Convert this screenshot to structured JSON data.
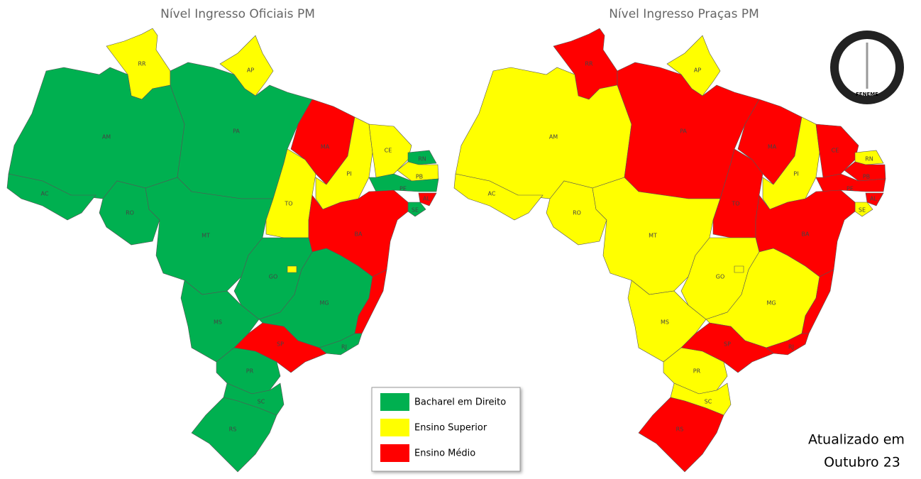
{
  "maps": [
    {
      "title": "Nível Ingresso Oficiais PM",
      "states": [
        {
          "label": "RR",
          "level": 1
        },
        {
          "label": "AP",
          "level": 1
        },
        {
          "label": "AM",
          "level": 0
        },
        {
          "label": "PA",
          "level": 0
        },
        {
          "label": "AC",
          "level": 0
        },
        {
          "label": "RO",
          "level": 0
        },
        {
          "label": "MT",
          "level": 0
        },
        {
          "label": "MA",
          "level": 2
        },
        {
          "label": "TO",
          "level": 1
        },
        {
          "label": "PI",
          "level": 1
        },
        {
          "label": "CE",
          "level": 1
        },
        {
          "label": "RN",
          "level": 0
        },
        {
          "label": "PB",
          "level": 1
        },
        {
          "label": "PE",
          "level": 0
        },
        {
          "label": "AL",
          "level": 2
        },
        {
          "label": "SE",
          "level": 0
        },
        {
          "label": "BA",
          "level": 2
        },
        {
          "label": "GO",
          "level": 0
        },
        {
          "level": 1
        },
        {
          "label": "MG",
          "level": 0
        },
        {
          "level": 2
        },
        {
          "label": "MS",
          "level": 0
        },
        {
          "label": "RJ",
          "level": 0
        },
        {
          "label": "SP",
          "level": 2
        },
        {
          "label": "PR",
          "level": 0
        },
        {
          "label": "SC",
          "level": 0
        },
        {
          "label": "RS",
          "level": 0
        }
      ]
    },
    {
      "title": "Nível Ingresso Praças PM",
      "states": [
        {
          "label": "RR",
          "level": 2
        },
        {
          "label": "AP",
          "level": 1
        },
        {
          "label": "AM",
          "level": 1
        },
        {
          "label": "PA",
          "level": 2
        },
        {
          "label": "AC",
          "level": 1
        },
        {
          "label": "RO",
          "level": 1
        },
        {
          "label": "MT",
          "level": 1
        },
        {
          "label": "MA",
          "level": 2
        },
        {
          "label": "TO",
          "level": 2
        },
        {
          "label": "PI",
          "level": 1
        },
        {
          "label": "CE",
          "level": 2
        },
        {
          "label": "RN",
          "level": 1
        },
        {
          "label": "PB",
          "level": 2
        },
        {
          "label": "PE",
          "level": 2
        },
        {
          "label": "AL",
          "level": 2
        },
        {
          "label": "SE",
          "level": 1
        },
        {
          "label": "BA",
          "level": 2
        },
        {
          "label": "GO",
          "level": 1
        },
        {
          "level": 1
        },
        {
          "label": "MG",
          "level": 1
        },
        {
          "level": 2
        },
        {
          "label": "MS",
          "level": 1
        },
        {
          "label": "RJ",
          "level": 2
        },
        {
          "label": "SP",
          "level": 2
        },
        {
          "label": "PR",
          "level": 1
        },
        {
          "label": "SC",
          "level": 1
        },
        {
          "label": "RS",
          "level": 2
        }
      ]
    }
  ],
  "legend": [
    {
      "label": "Bacharel em Direito",
      "color": "#00b050"
    },
    {
      "label": "Ensino Superior",
      "color": "#ffff00"
    },
    {
      "label": "Ensino Médio",
      "color": "#ff0000"
    }
  ],
  "logo": {
    "text": "FENEME"
  },
  "update": {
    "line1": "Atualizado em",
    "line2": "Outubro 23"
  }
}
